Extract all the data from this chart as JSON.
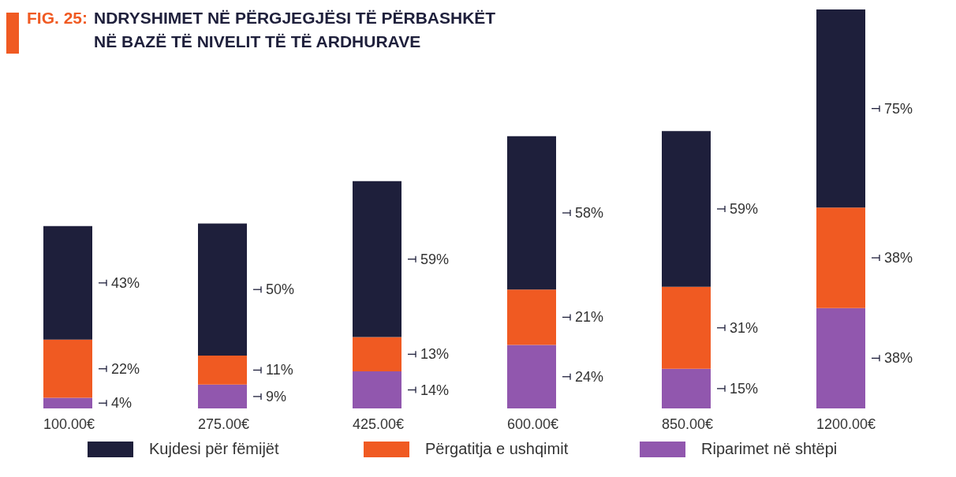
{
  "chart_data": {
    "type": "bar",
    "title": "FIG. 25: NDRYSHIMET NË PËRGJEGJËSI TË PËRBASHKËT NË BAZË TË NIVELIT TË TË ARDHURAVE",
    "categories": [
      "100.00€",
      "275.00€",
      "425.00€",
      "600.00€",
      "850.00€",
      "1200.00€"
    ],
    "stacked": true,
    "legend": "bottom",
    "series": [
      {
        "name": "Riparimet në shtëpi",
        "color": "#9157ae",
        "values": [
          4,
          9,
          14,
          24,
          15,
          38
        ],
        "value_labels": [
          "4%",
          "9%",
          "14%",
          "24%",
          "15%",
          "38%"
        ]
      },
      {
        "name": "Përgatitja e ushqimit",
        "color": "#f05a22",
        "values": [
          22,
          11,
          13,
          21,
          31,
          38
        ],
        "value_labels": [
          "22%",
          "11%",
          "13%",
          "21%",
          "31%",
          "38%"
        ]
      },
      {
        "name": "Kujdesi për fëmijët",
        "color": "#1e1f3b",
        "values": [
          43,
          50,
          59,
          58,
          59,
          75
        ],
        "value_labels": [
          "43%",
          "50%",
          "59%",
          "58%",
          "59%",
          "75%"
        ]
      }
    ]
  }
}
